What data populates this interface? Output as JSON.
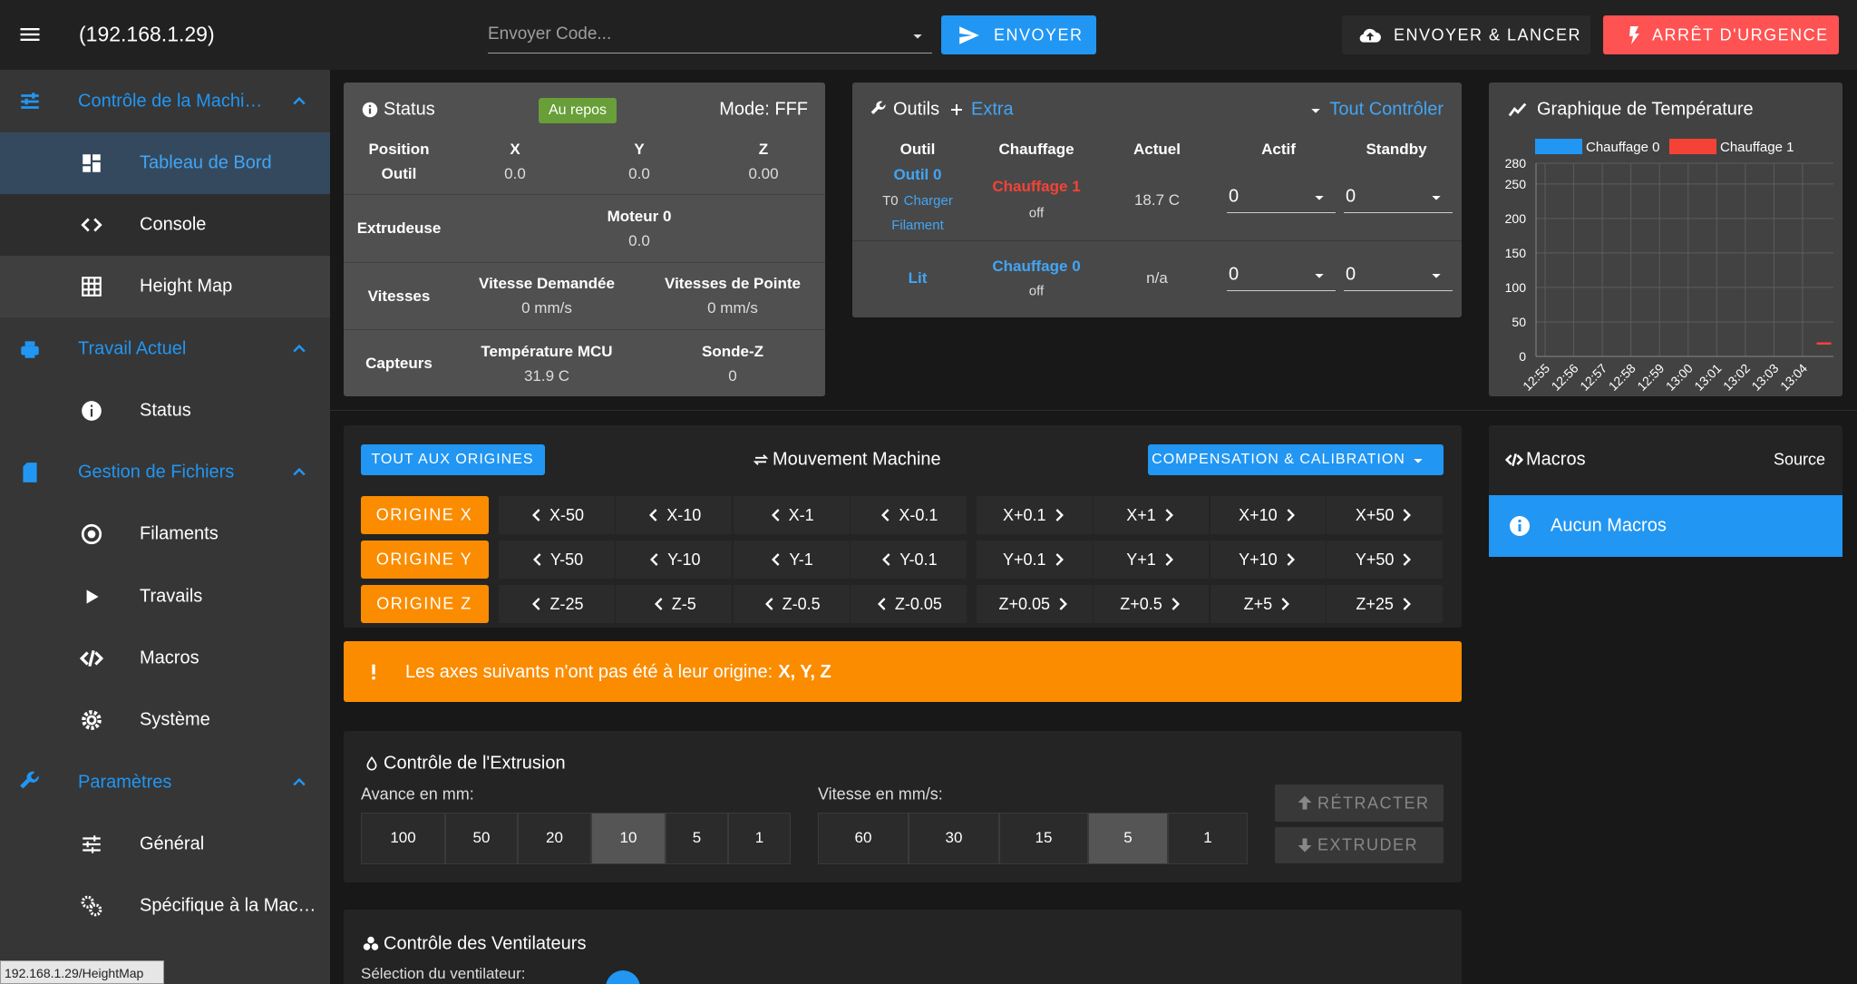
{
  "topbar": {
    "host": "(192.168.1.29)",
    "code_placeholder": "Envoyer Code...",
    "send": "ENVOYER",
    "upload": "ENVOYER & LANCER",
    "emergency": "ARRÊT D'URGENCE"
  },
  "sidebar": {
    "groups": [
      {
        "title": "Contrôle de la Machi…",
        "items": [
          "Tableau de Bord",
          "Console",
          "Height Map"
        ]
      },
      {
        "title": "Travail Actuel",
        "items": [
          "Status"
        ]
      },
      {
        "title": "Gestion de Fichiers",
        "items": [
          "Filaments",
          "Travails",
          "Macros",
          "Système"
        ]
      },
      {
        "title": "Paramètres",
        "items": [
          "Général",
          "Spécifique à la Mac…"
        ]
      }
    ]
  },
  "status_bar_url": "192.168.1.29/HeightMap",
  "status": {
    "title": "Status",
    "state": "Au repos",
    "mode": "Mode: FFF",
    "position": {
      "label1": "Position",
      "label2": "Outil",
      "axes": [
        "X",
        "Y",
        "Z"
      ],
      "values": [
        "0.0",
        "0.0",
        "0.00"
      ]
    },
    "extruder": {
      "label": "Extrudeuse",
      "head": "Moteur 0",
      "value": "0.0"
    },
    "speeds": {
      "label": "Vitesses",
      "cols": [
        [
          "Vitesse Demandée",
          "0 mm/s"
        ],
        [
          "Vitesses de Pointe",
          "0 mm/s"
        ]
      ]
    },
    "sensors": {
      "label": "Capteurs",
      "cols": [
        [
          "Température MCU",
          "31.9 C"
        ],
        [
          "Sonde-Z",
          "0"
        ]
      ]
    }
  },
  "tools": {
    "title": "Outils",
    "extra": "Extra",
    "control_all": "Tout Contrôler",
    "headers": [
      "Outil",
      "Chauffage",
      "Actuel",
      "Actif",
      "Standby"
    ],
    "rows": [
      {
        "tool": "Outil 0",
        "sub_prefix": "T0",
        "sub_link": "Charger Filament",
        "heater": "Chauffage 1",
        "heater_state": "off",
        "current": "18.7 C",
        "active": "0",
        "standby": "0"
      },
      {
        "tool": "Lit",
        "heater": "Chauffage 0",
        "heater_state": "off",
        "current": "n/a",
        "active": "0",
        "standby": "0"
      }
    ]
  },
  "chart_data": {
    "type": "line",
    "title": "Graphique de Température",
    "x": [
      "12:55",
      "12:56",
      "12:57",
      "12:58",
      "12:59",
      "13:00",
      "13:01",
      "13:02",
      "13:03",
      "13:04",
      null
    ],
    "series": [
      {
        "name": "Chauffage 0",
        "color": "#2196f3",
        "values": [
          null,
          null,
          null,
          null,
          null,
          null,
          null,
          null,
          null,
          null,
          null
        ]
      },
      {
        "name": "Chauffage 1",
        "color": "#f44336",
        "values": [
          null,
          null,
          null,
          null,
          null,
          null,
          null,
          null,
          null,
          null,
          18.7
        ]
      }
    ],
    "ylim": [
      0,
      280
    ],
    "yticks": [
      0,
      50,
      100,
      150,
      200,
      250,
      280
    ],
    "grid": true,
    "legend": "top"
  },
  "movement": {
    "home_all": "TOUT AUX ORIGINES",
    "title": "Mouvement Machine",
    "compensation": "COMPENSATION & CALIBRATION",
    "rows": [
      {
        "home": "ORIGINE X",
        "minus": [
          "X-50",
          "X-10",
          "X-1",
          "X-0.1"
        ],
        "plus": [
          "X+0.1",
          "X+1",
          "X+10",
          "X+50"
        ]
      },
      {
        "home": "ORIGINE Y",
        "minus": [
          "Y-50",
          "Y-10",
          "Y-1",
          "Y-0.1"
        ],
        "plus": [
          "Y+0.1",
          "Y+1",
          "Y+10",
          "Y+50"
        ]
      },
      {
        "home": "ORIGINE Z",
        "minus": [
          "Z-25",
          "Z-5",
          "Z-0.5",
          "Z-0.05"
        ],
        "plus": [
          "Z+0.05",
          "Z+0.5",
          "Z+5",
          "Z+25"
        ]
      }
    ]
  },
  "warning": {
    "text": "Les axes suivants n'ont pas été à leur origine:",
    "axes": "X, Y, Z"
  },
  "macros": {
    "title": "Macros",
    "source": "Source",
    "empty": "Aucun Macros"
  },
  "extrusion": {
    "title": "Contrôle de l'Extrusion",
    "feed_label": "Avance en mm:",
    "feed": [
      "100",
      "50",
      "20",
      "10",
      "5",
      "1"
    ],
    "speed_label": "Vitesse en mm/s:",
    "speed": [
      "60",
      "30",
      "15",
      "5",
      "1"
    ],
    "retract": "RÉTRACTER",
    "extrude": "EXTRUDER"
  },
  "fans": {
    "title": "Contrôle des Ventilateurs",
    "select_label": "Sélection du ventilateur:"
  }
}
